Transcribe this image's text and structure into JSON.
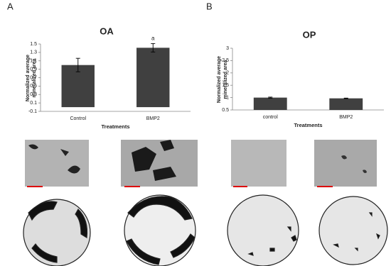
{
  "panels": [
    "A",
    "B"
  ],
  "chart_data": [
    {
      "type": "bar",
      "title": "OA",
      "y_label": "Normalized average mineralized area",
      "x_label": "Treatments",
      "categories": [
        "Control",
        "BMP2"
      ],
      "values": [
        1.0,
        1.41
      ],
      "errors": [
        0.16,
        0.1
      ],
      "color": "#404040",
      "annotations": [
        {
          "category": 1,
          "text": "a"
        }
      ],
      "ylim": [
        -0.1,
        1.5
      ],
      "yticks": [
        -0.1,
        0.1,
        0.3,
        0.5,
        0.7,
        0.9,
        1.1,
        1.3,
        1.5
      ]
    },
    {
      "type": "bar",
      "title": "OP",
      "y_label": "Normalized average mineralized area",
      "x_label": "Treatments",
      "categories": [
        "control",
        "BMP2"
      ],
      "values": [
        1.0,
        0.97
      ],
      "errors": [
        0.02,
        0.01
      ],
      "color": "#404040",
      "ylim": [
        0.5,
        3
      ],
      "yticks": [
        0.5,
        1,
        1.5,
        2,
        2.5,
        3
      ]
    }
  ]
}
